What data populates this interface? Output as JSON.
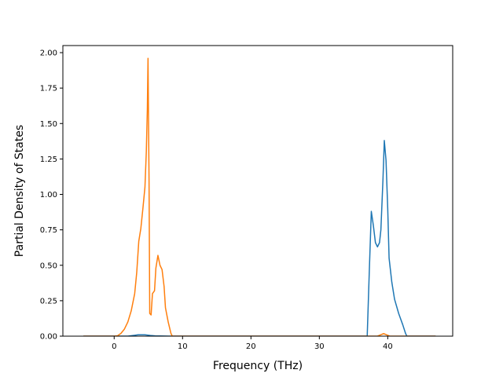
{
  "chart_data": {
    "type": "line",
    "title": "",
    "xlabel": "Frequency (THz)",
    "ylabel": "Partial Density of States",
    "xlim": [
      -7.5,
      49.5
    ],
    "ylim": [
      0,
      2.05
    ],
    "xticks": [
      0,
      10,
      20,
      30,
      40
    ],
    "xtick_labels": [
      "0",
      "10",
      "20",
      "30",
      "40"
    ],
    "yticks": [
      0,
      0.25,
      0.5,
      0.75,
      1.0,
      1.25,
      1.5,
      1.75,
      2.0
    ],
    "ytick_labels": [
      "0.00",
      "0.25",
      "0.50",
      "0.75",
      "1.00",
      "1.25",
      "1.50",
      "1.75",
      "2.00"
    ],
    "grid": false,
    "legend": "none",
    "series": [
      {
        "color": "#1f77b4",
        "points": [
          [
            -4.5,
            0
          ],
          [
            2.0,
            0
          ],
          [
            3.0,
            0.006
          ],
          [
            3.5,
            0.01
          ],
          [
            4.5,
            0.01
          ],
          [
            5.3,
            0.005
          ],
          [
            6.0,
            0.002
          ],
          [
            8.0,
            0
          ],
          [
            37.0,
            0
          ],
          [
            37.3,
            0.45
          ],
          [
            37.6,
            0.88
          ],
          [
            37.9,
            0.78
          ],
          [
            38.2,
            0.66
          ],
          [
            38.5,
            0.63
          ],
          [
            38.8,
            0.66
          ],
          [
            39.0,
            0.75
          ],
          [
            39.3,
            1.1
          ],
          [
            39.5,
            1.38
          ],
          [
            39.75,
            1.24
          ],
          [
            40.0,
            0.9
          ],
          [
            40.2,
            0.55
          ],
          [
            40.6,
            0.38
          ],
          [
            41.0,
            0.26
          ],
          [
            41.6,
            0.16
          ],
          [
            42.2,
            0.08
          ],
          [
            42.6,
            0.02
          ],
          [
            42.8,
            0
          ],
          [
            47.0,
            0
          ]
        ]
      },
      {
        "color": "#ff7f0e",
        "points": [
          [
            -4.5,
            0
          ],
          [
            0.0,
            0
          ],
          [
            0.5,
            0.003
          ],
          [
            1.0,
            0.02
          ],
          [
            1.5,
            0.05
          ],
          [
            2.0,
            0.1
          ],
          [
            2.5,
            0.18
          ],
          [
            3.0,
            0.3
          ],
          [
            3.3,
            0.45
          ],
          [
            3.6,
            0.67
          ],
          [
            3.9,
            0.76
          ],
          [
            4.2,
            0.9
          ],
          [
            4.5,
            1.05
          ],
          [
            4.7,
            1.3
          ],
          [
            4.85,
            1.6
          ],
          [
            4.95,
            1.96
          ],
          [
            5.1,
            1.1
          ],
          [
            5.2,
            0.16
          ],
          [
            5.4,
            0.15
          ],
          [
            5.6,
            0.3
          ],
          [
            5.9,
            0.32
          ],
          [
            6.1,
            0.48
          ],
          [
            6.4,
            0.57
          ],
          [
            6.7,
            0.5
          ],
          [
            7.0,
            0.47
          ],
          [
            7.3,
            0.35
          ],
          [
            7.5,
            0.2
          ],
          [
            7.9,
            0.1
          ],
          [
            8.3,
            0.02
          ],
          [
            8.5,
            0
          ],
          [
            38.5,
            0
          ],
          [
            39.0,
            0.01
          ],
          [
            39.4,
            0.018
          ],
          [
            39.8,
            0.01
          ],
          [
            40.3,
            0
          ],
          [
            47.0,
            0
          ]
        ]
      }
    ]
  }
}
